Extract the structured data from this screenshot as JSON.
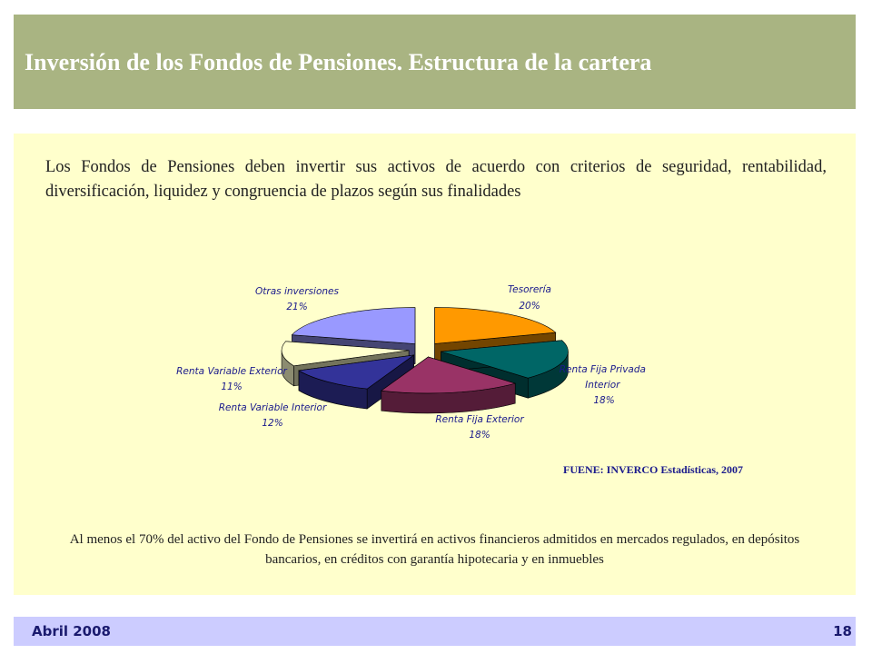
{
  "header": {
    "title": "Inversión de los Fondos de Pensiones. Estructura de la cartera"
  },
  "content": {
    "intro": "Los Fondos de Pensiones deben invertir sus activos de acuerdo con criterios de seguridad, rentabilidad, diversificación, liquidez y congruencia de plazos según sus finalidades",
    "source": "FUENE: INVERCO Estadísticas, 2007",
    "footnote": "Al menos el 70% del activo del Fondo de Pensiones se invertirá en activos financieros admitidos en mercados regulados, en depósitos bancarios, en créditos con garantía hipotecaria y en inmuebles"
  },
  "chart_data": {
    "type": "pie",
    "slices": [
      {
        "label": "Tesorería",
        "value_label": "20%",
        "value": 20,
        "color": "#ff9900"
      },
      {
        "label": "Renta Fija Privada Interior",
        "value_label": "18%",
        "value": 18,
        "color": "#006666"
      },
      {
        "label": "Renta Fija Exterior",
        "value_label": "18%",
        "value": 18,
        "color": "#993366"
      },
      {
        "label": "Renta Variable Interior",
        "value_label": "12%",
        "value": 12,
        "color": "#333399"
      },
      {
        "label": "Renta Variable Exterior",
        "value_label": "11%",
        "value": 11,
        "color": "#ffffcc"
      },
      {
        "label": "Otras inversiones",
        "value_label": "21%",
        "value": 21,
        "color": "#9999ff"
      }
    ]
  },
  "footer": {
    "date": "Abril 2008",
    "page": "18"
  }
}
